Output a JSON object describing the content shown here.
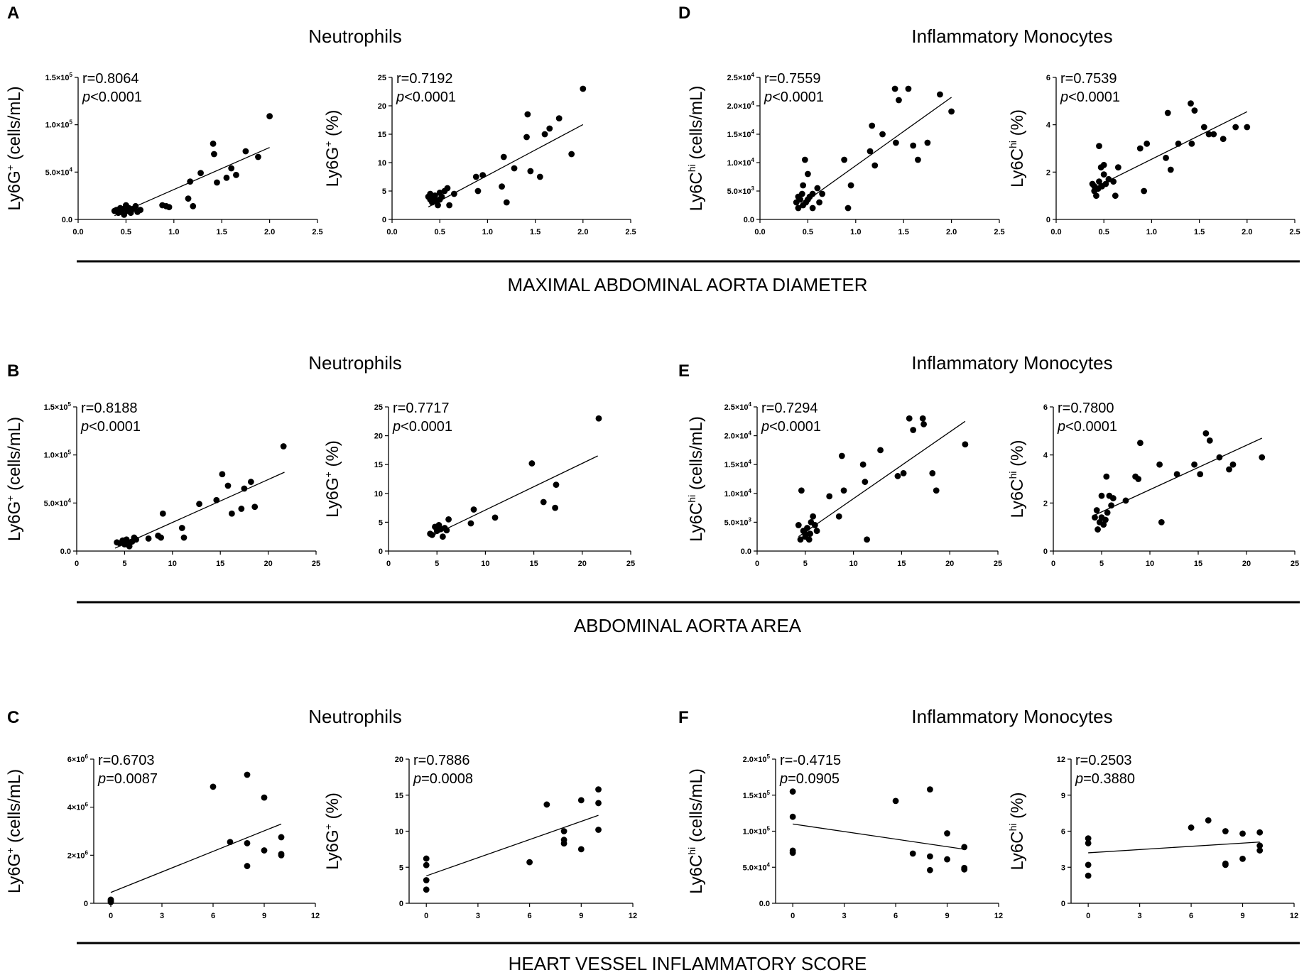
{
  "figure": {
    "section_labels": [
      "MAXIMAL ABDOMINAL AORTA DIAMETER",
      "ABDOMINAL AORTA AREA",
      "HEART VESSEL INFLAMMATORY SCORE"
    ],
    "panels": [
      {
        "letter": "A",
        "title": "Neutrophils"
      },
      {
        "letter": "D",
        "title": "Inflammatory Monocytes"
      },
      {
        "letter": "B",
        "title": "Neutrophils"
      },
      {
        "letter": "E",
        "title": "Inflammatory Monocytes"
      },
      {
        "letter": "C",
        "title": "Neutrophils"
      },
      {
        "letter": "F",
        "title": "Inflammatory Monocytes"
      }
    ]
  },
  "chart_data": [
    {
      "id": "A1",
      "type": "scatter",
      "ylabel_main": "Ly6G",
      "ylabel_sup": "+",
      "ylabel_tail": " (cells/mL)",
      "r": "r=0.8064",
      "p_sym": "p",
      "p_rest": "<0.0001",
      "xlim": [
        0,
        2.5
      ],
      "xticks": [
        "0.0",
        "0.5",
        "1.0",
        "1.5",
        "2.0",
        "2.5"
      ],
      "ylim": [
        0,
        150000
      ],
      "yticks": [
        {
          "base": "0.0",
          "exp": ""
        },
        {
          "base": "5.0×10",
          "exp": "4"
        },
        {
          "base": "1.0×10",
          "exp": "5"
        },
        {
          "base": "1.5×10",
          "exp": "5"
        }
      ],
      "fit": [
        [
          0.38,
          4000
        ],
        [
          2.0,
          76000
        ]
      ],
      "x": [
        0.38,
        0.4,
        0.42,
        0.44,
        0.45,
        0.47,
        0.48,
        0.5,
        0.5,
        0.52,
        0.53,
        0.55,
        0.57,
        0.6,
        0.62,
        0.65,
        0.88,
        0.92,
        0.95,
        1.15,
        1.17,
        1.2,
        1.28,
        1.41,
        1.42,
        1.45,
        1.55,
        1.6,
        1.65,
        1.75,
        1.88,
        2.0
      ],
      "y": [
        9000,
        10000,
        7000,
        12000,
        8000,
        11000,
        5000,
        13000,
        15000,
        9000,
        12000,
        7000,
        11000,
        14000,
        8000,
        10000,
        15000,
        14000,
        13000,
        22000,
        40000,
        14000,
        49000,
        80000,
        69000,
        39000,
        44000,
        54000,
        47000,
        72000,
        66000,
        109000
      ]
    },
    {
      "id": "A2",
      "type": "scatter",
      "ylabel_main": "Ly6G",
      "ylabel_sup": "+",
      "ylabel_tail": " (%)",
      "r": "r=0.7192",
      "p_sym": "p",
      "p_rest": "<0.0001",
      "xlim": [
        0,
        2.5
      ],
      "xticks": [
        "0.0",
        "0.5",
        "1.0",
        "1.5",
        "2.0",
        "2.5"
      ],
      "ylim": [
        0,
        25
      ],
      "yticks": [
        {
          "base": "0",
          "exp": ""
        },
        {
          "base": "5",
          "exp": ""
        },
        {
          "base": "10",
          "exp": ""
        },
        {
          "base": "15",
          "exp": ""
        },
        {
          "base": "20",
          "exp": ""
        },
        {
          "base": "25",
          "exp": ""
        }
      ],
      "fit": [
        [
          0.38,
          2.2
        ],
        [
          2.0,
          16.7
        ]
      ],
      "x": [
        0.38,
        0.4,
        0.4,
        0.42,
        0.44,
        0.45,
        0.47,
        0.48,
        0.5,
        0.5,
        0.52,
        0.55,
        0.58,
        0.6,
        0.65,
        0.88,
        0.9,
        0.95,
        1.15,
        1.17,
        1.2,
        1.28,
        1.41,
        1.42,
        1.45,
        1.55,
        1.6,
        1.65,
        1.75,
        1.88,
        2.0
      ],
      "y": [
        4,
        3.5,
        4.5,
        3,
        3.8,
        4.2,
        3.2,
        2.5,
        4.7,
        3.5,
        4,
        5,
        5.5,
        2.5,
        4.5,
        7.5,
        5,
        7.8,
        5.8,
        11,
        3,
        9,
        14.5,
        18.5,
        8.5,
        7.5,
        15,
        16,
        17.8,
        11.5,
        23
      ]
    },
    {
      "id": "D1",
      "type": "scatter",
      "ylabel_main": "Ly6C",
      "ylabel_sup": "hi",
      "ylabel_tail": " (cells/mL)",
      "r": "r=0.7559",
      "p_sym": "p",
      "p_rest": "<0.0001",
      "xlim": [
        0,
        2.5
      ],
      "xticks": [
        "0.0",
        "0.5",
        "1.0",
        "1.5",
        "2.0",
        "2.5"
      ],
      "ylim": [
        0,
        25000
      ],
      "yticks": [
        {
          "base": "0.0",
          "exp": ""
        },
        {
          "base": "5.0×10",
          "exp": "3"
        },
        {
          "base": "1.0×10",
          "exp": "4"
        },
        {
          "base": "1.5×10",
          "exp": "4"
        },
        {
          "base": "2.0×10",
          "exp": "4"
        },
        {
          "base": "2.5×10",
          "exp": "4"
        }
      ],
      "fit": [
        [
          0.38,
          2000
        ],
        [
          2.0,
          21500
        ]
      ],
      "x": [
        0.38,
        0.4,
        0.4,
        0.42,
        0.44,
        0.45,
        0.45,
        0.47,
        0.48,
        0.5,
        0.5,
        0.52,
        0.55,
        0.55,
        0.6,
        0.62,
        0.65,
        0.88,
        0.92,
        0.95,
        1.15,
        1.17,
        1.2,
        1.28,
        1.41,
        1.42,
        1.45,
        1.55,
        1.6,
        1.65,
        1.75,
        1.88,
        2.0
      ],
      "y": [
        3000,
        4000,
        2000,
        3500,
        4500,
        6000,
        2500,
        10500,
        3000,
        8000,
        3500,
        4000,
        2000,
        4500,
        5500,
        3000,
        4500,
        10500,
        2000,
        6000,
        12000,
        16500,
        9500,
        15000,
        23000,
        13500,
        21000,
        23000,
        13000,
        10500,
        13500,
        22000,
        19000
      ]
    },
    {
      "id": "D2",
      "type": "scatter",
      "ylabel_main": "Ly6C",
      "ylabel_sup": "hi",
      "ylabel_tail": " (%)",
      "r": "r=0.7539",
      "p_sym": "p",
      "p_rest": "<0.0001",
      "xlim": [
        0,
        2.5
      ],
      "xticks": [
        "0.0",
        "0.5",
        "1.0",
        "1.5",
        "2.0",
        "2.5"
      ],
      "ylim": [
        0,
        6
      ],
      "yticks": [
        {
          "base": "0",
          "exp": ""
        },
        {
          "base": "2",
          "exp": ""
        },
        {
          "base": "4",
          "exp": ""
        },
        {
          "base": "6",
          "exp": ""
        }
      ],
      "fit": [
        [
          0.38,
          1.3
        ],
        [
          2.0,
          4.55
        ]
      ],
      "x": [
        0.38,
        0.4,
        0.4,
        0.42,
        0.44,
        0.45,
        0.45,
        0.47,
        0.48,
        0.5,
        0.5,
        0.52,
        0.55,
        0.6,
        0.62,
        0.65,
        0.88,
        0.92,
        0.95,
        1.15,
        1.17,
        1.2,
        1.28,
        1.41,
        1.42,
        1.45,
        1.55,
        1.6,
        1.65,
        1.75,
        1.88,
        2.0
      ],
      "y": [
        1.5,
        1.2,
        1.4,
        1,
        1.3,
        1.6,
        3.1,
        2.2,
        1.4,
        1.9,
        2.3,
        1.5,
        1.7,
        1.6,
        1,
        2.2,
        3,
        1.2,
        3.2,
        2.6,
        4.5,
        2.1,
        3.2,
        4.9,
        3.2,
        4.6,
        3.9,
        3.6,
        3.6,
        3.4,
        3.9,
        3.9
      ]
    },
    {
      "id": "B1",
      "type": "scatter",
      "ylabel_main": "Ly6G",
      "ylabel_sup": "+",
      "ylabel_tail": " (cells/mL)",
      "r": "r=0.8188",
      "p_sym": "p",
      "p_rest": "<0.0001",
      "xlim": [
        0,
        25
      ],
      "xticks": [
        "0",
        "5",
        "10",
        "15",
        "20",
        "25"
      ],
      "ylim": [
        0,
        150000
      ],
      "yticks": [
        {
          "base": "0.0",
          "exp": ""
        },
        {
          "base": "5.0×10",
          "exp": "4"
        },
        {
          "base": "1.0×10",
          "exp": "5"
        },
        {
          "base": "1.5×10",
          "exp": "5"
        }
      ],
      "fit": [
        [
          4.0,
          3000
        ],
        [
          21.7,
          82000
        ]
      ],
      "x": [
        4.2,
        4.5,
        4.8,
        5.0,
        5.2,
        5.5,
        5.6,
        5.8,
        6.0,
        6.2,
        7.5,
        8.5,
        8.8,
        9.0,
        11.0,
        11.2,
        12.8,
        14.6,
        15.2,
        15.8,
        16.2,
        17.2,
        17.5,
        18.2,
        18.6,
        21.6
      ],
      "y": [
        9000,
        8000,
        11000,
        7000,
        12000,
        5000,
        9000,
        10000,
        14000,
        12000,
        13000,
        16000,
        14000,
        39000,
        24000,
        14000,
        49000,
        53000,
        80000,
        68000,
        39000,
        44000,
        65000,
        72000,
        46000,
        109000
      ]
    },
    {
      "id": "B2",
      "type": "scatter",
      "ylabel_main": "Ly6G",
      "ylabel_sup": "+",
      "ylabel_tail": " (%)",
      "r": "r=0.7717",
      "p_sym": "p",
      "p_rest": "<0.0001",
      "xlim": [
        0,
        25
      ],
      "xticks": [
        "0",
        "5",
        "10",
        "15",
        "20",
        "25"
      ],
      "ylim": [
        0,
        25
      ],
      "yticks": [
        {
          "base": "0",
          "exp": ""
        },
        {
          "base": "5",
          "exp": ""
        },
        {
          "base": "10",
          "exp": ""
        },
        {
          "base": "15",
          "exp": ""
        },
        {
          "base": "20",
          "exp": ""
        },
        {
          "base": "25",
          "exp": ""
        }
      ],
      "fit": [
        [
          4.3,
          2.5
        ],
        [
          21.6,
          16.5
        ]
      ],
      "x": [
        4.3,
        4.5,
        4.8,
        5.0,
        5.2,
        5.4,
        5.6,
        5.8,
        6.0,
        6.2,
        8.5,
        8.8,
        11.0,
        14.8,
        16.0,
        17.2,
        17.3,
        21.7
      ],
      "y": [
        3,
        2.8,
        4.2,
        3.5,
        4.5,
        3.8,
        2.5,
        4,
        3.6,
        5.5,
        4.8,
        7.2,
        5.8,
        15.2,
        8.5,
        7.5,
        11.5,
        23
      ]
    },
    {
      "id": "E1",
      "type": "scatter",
      "ylabel_main": "Ly6C",
      "ylabel_sup": "hi",
      "ylabel_tail": " (cells/mL)",
      "r": "r=0.7294",
      "p_sym": "p",
      "p_rest": "<0.0001",
      "xlim": [
        0,
        25
      ],
      "xticks": [
        "0",
        "5",
        "10",
        "15",
        "20",
        "25"
      ],
      "ylim": [
        0,
        25000
      ],
      "yticks": [
        {
          "base": "0.0",
          "exp": ""
        },
        {
          "base": "5.0×10",
          "exp": "3"
        },
        {
          "base": "1.0×10",
          "exp": "4"
        },
        {
          "base": "1.5×10",
          "exp": "4"
        },
        {
          "base": "2.0×10",
          "exp": "4"
        },
        {
          "base": "2.5×10",
          "exp": "4"
        }
      ],
      "fit": [
        [
          4.3,
          2500
        ],
        [
          21.6,
          22500
        ]
      ],
      "x": [
        4.3,
        4.5,
        4.6,
        4.8,
        5.0,
        5.0,
        5.2,
        5.4,
        5.5,
        5.6,
        5.8,
        6.0,
        6.2,
        7.5,
        8.5,
        8.8,
        9.0,
        11.0,
        11.2,
        11.4,
        12.8,
        14.6,
        15.2,
        15.8,
        16.2,
        17.2,
        17.3,
        18.2,
        18.6,
        21.6
      ],
      "y": [
        4500,
        2000,
        10500,
        3500,
        3000,
        2500,
        4000,
        2000,
        3000,
        5000,
        6000,
        4500,
        3500,
        9500,
        6000,
        16500,
        10500,
        15000,
        12000,
        2000,
        17500,
        13000,
        13500,
        23000,
        21000,
        23000,
        22000,
        13500,
        10500,
        18500
      ]
    },
    {
      "id": "E2",
      "type": "scatter",
      "ylabel_main": "Ly6C",
      "ylabel_sup": "hi",
      "ylabel_tail": " (%)",
      "r": "r=0.7800",
      "p_sym": "p",
      "p_rest": "<0.0001",
      "xlim": [
        0,
        25
      ],
      "xticks": [
        "0",
        "5",
        "10",
        "15",
        "20",
        "25"
      ],
      "ylim": [
        0,
        6
      ],
      "yticks": [
        {
          "base": "0",
          "exp": ""
        },
        {
          "base": "2",
          "exp": ""
        },
        {
          "base": "4",
          "exp": ""
        },
        {
          "base": "6",
          "exp": ""
        }
      ],
      "fit": [
        [
          4.3,
          1.5
        ],
        [
          21.6,
          4.7
        ]
      ],
      "x": [
        4.3,
        4.5,
        4.6,
        4.8,
        5.0,
        5.0,
        5.2,
        5.4,
        5.5,
        5.6,
        5.8,
        6.0,
        6.2,
        7.5,
        8.5,
        8.8,
        9.0,
        11.0,
        11.2,
        12.8,
        14.6,
        15.2,
        15.8,
        16.2,
        17.2,
        18.2,
        18.6,
        21.6
      ],
      "y": [
        1.4,
        1.7,
        0.9,
        1.2,
        1.4,
        2.3,
        1.1,
        1.3,
        3.1,
        1.6,
        2.3,
        1.9,
        2.2,
        2.1,
        3.1,
        3,
        4.5,
        3.6,
        1.2,
        3.2,
        3.6,
        3.2,
        4.9,
        4.6,
        3.9,
        3.4,
        3.6,
        3.9
      ]
    },
    {
      "id": "C1",
      "type": "scatter",
      "ylabel_main": "Ly6G",
      "ylabel_sup": "+",
      "ylabel_tail": " (cells/mL)",
      "r": "r=0.6703",
      "p_sym": "p",
      "p_rest": "=0.0087",
      "xlim": [
        -1,
        12
      ],
      "xticks": [
        "0",
        "3",
        "6",
        "9",
        "12"
      ],
      "xtick_values": [
        0,
        3,
        6,
        9,
        12
      ],
      "ylim": [
        0,
        6000000
      ],
      "yticks": [
        {
          "base": "0",
          "exp": ""
        },
        {
          "base": "2×10",
          "exp": "6"
        },
        {
          "base": "4×10",
          "exp": "6"
        },
        {
          "base": "6×10",
          "exp": "6"
        }
      ],
      "fit": [
        [
          0,
          450000
        ],
        [
          10,
          3300000
        ]
      ],
      "x": [
        0,
        0,
        0,
        6,
        7,
        8,
        8,
        8,
        9,
        9,
        10,
        10,
        10
      ],
      "y": [
        50000,
        100000,
        150000,
        4850000,
        2550000,
        5350000,
        2500000,
        1550000,
        4400000,
        2200000,
        2750000,
        2000000,
        2050000
      ]
    },
    {
      "id": "C2",
      "type": "scatter",
      "ylabel_main": "Ly6G",
      "ylabel_sup": "+",
      "ylabel_tail": " (%)",
      "r": "r=0.7886",
      "p_sym": "p",
      "p_rest": "=0.0008",
      "xlim": [
        -1,
        12
      ],
      "xticks": [
        "0",
        "3",
        "6",
        "9",
        "12"
      ],
      "xtick_values": [
        0,
        3,
        6,
        9,
        12
      ],
      "ylim": [
        0,
        20
      ],
      "yticks": [
        {
          "base": "0",
          "exp": ""
        },
        {
          "base": "5",
          "exp": ""
        },
        {
          "base": "10",
          "exp": ""
        },
        {
          "base": "15",
          "exp": ""
        },
        {
          "base": "20",
          "exp": ""
        }
      ],
      "fit": [
        [
          0,
          3.8
        ],
        [
          10,
          12.2
        ]
      ],
      "x": [
        0,
        0,
        0,
        0,
        6,
        7,
        8,
        8,
        8,
        9,
        9,
        10,
        10,
        10
      ],
      "y": [
        6.2,
        5.3,
        3.2,
        1.9,
        5.7,
        13.7,
        10,
        8.8,
        8.3,
        14.3,
        7.5,
        15.8,
        13.9,
        10.2
      ]
    },
    {
      "id": "F1",
      "type": "scatter",
      "ylabel_main": "Ly6C",
      "ylabel_sup": "hi",
      "ylabel_tail": " (cells/mL)",
      "r": "r=-0.4715",
      "p_sym": "p",
      "p_rest": "=0.0905",
      "xlim": [
        -1,
        12
      ],
      "xticks": [
        "0",
        "3",
        "6",
        "9",
        "12"
      ],
      "xtick_values": [
        0,
        3,
        6,
        9,
        12
      ],
      "ylim": [
        0,
        200000
      ],
      "yticks": [
        {
          "base": "0.0",
          "exp": ""
        },
        {
          "base": "5.0×10",
          "exp": "4"
        },
        {
          "base": "1.0×10",
          "exp": "5"
        },
        {
          "base": "1.5×10",
          "exp": "5"
        },
        {
          "base": "2.0×10",
          "exp": "5"
        }
      ],
      "fit": [
        [
          0,
          110000
        ],
        [
          10,
          75000
        ]
      ],
      "x": [
        0,
        0,
        0,
        0,
        6,
        7,
        8,
        8,
        8,
        9,
        9,
        10,
        10,
        10
      ],
      "y": [
        155000,
        120000,
        73000,
        70000,
        142000,
        69000,
        158000,
        65000,
        46000,
        97000,
        61000,
        78000,
        49000,
        47000
      ]
    },
    {
      "id": "F2",
      "type": "scatter",
      "ylabel_main": "Ly6C",
      "ylabel_sup": "hi",
      "ylabel_tail": " (%)",
      "r": "r=0.2503",
      "p_sym": "p",
      "p_rest": "=0.3880",
      "xlim": [
        -1,
        12
      ],
      "xticks": [
        "0",
        "3",
        "6",
        "9",
        "12"
      ],
      "xtick_values": [
        0,
        3,
        6,
        9,
        12
      ],
      "ylim": [
        0,
        12
      ],
      "yticks": [
        {
          "base": "0",
          "exp": ""
        },
        {
          "base": "3",
          "exp": ""
        },
        {
          "base": "6",
          "exp": ""
        },
        {
          "base": "9",
          "exp": ""
        },
        {
          "base": "12",
          "exp": ""
        }
      ],
      "fit": [
        [
          0,
          4.2
        ],
        [
          10,
          5.1
        ]
      ],
      "x": [
        0,
        0,
        0,
        0,
        6,
        7,
        8,
        8,
        8,
        9,
        9,
        10,
        10,
        10
      ],
      "y": [
        5.4,
        5,
        3.2,
        2.3,
        6.3,
        6.9,
        6,
        3.3,
        3.2,
        5.8,
        3.7,
        5.9,
        4.8,
        4.4
      ]
    }
  ]
}
